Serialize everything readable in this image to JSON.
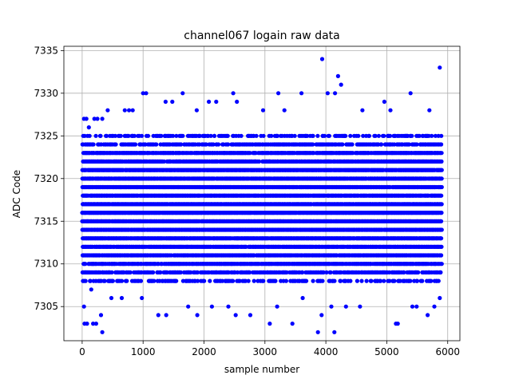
{
  "chart_data": {
    "type": "scatter",
    "title": "channel067 logain raw data",
    "xlabel": "sample number",
    "ylabel": "ADC Code",
    "xlim": [
      -300,
      6200
    ],
    "ylim": [
      7301,
      7335.5
    ],
    "xticks": [
      0,
      1000,
      2000,
      3000,
      4000,
      5000,
      6000
    ],
    "yticks": [
      7305,
      7310,
      7315,
      7320,
      7325,
      7330,
      7335
    ],
    "grid": true,
    "marker_color": "#0000ff",
    "n_samples": 5900,
    "typical_values": [
      7308,
      7309,
      7310,
      7311,
      7312,
      7313,
      7314,
      7315,
      7316,
      7317,
      7318,
      7319,
      7320,
      7321,
      7322,
      7323,
      7324,
      7325
    ],
    "sparse_points": [
      {
        "x": 30,
        "y": 7327
      },
      {
        "x": 70,
        "y": 7327
      },
      {
        "x": 110,
        "y": 7326
      },
      {
        "x": 200,
        "y": 7327
      },
      {
        "x": 250,
        "y": 7327
      },
      {
        "x": 330,
        "y": 7327
      },
      {
        "x": 420,
        "y": 7328
      },
      {
        "x": 700,
        "y": 7328
      },
      {
        "x": 770,
        "y": 7328
      },
      {
        "x": 830,
        "y": 7328
      },
      {
        "x": 1000,
        "y": 7330
      },
      {
        "x": 1050,
        "y": 7330
      },
      {
        "x": 1370,
        "y": 7329
      },
      {
        "x": 1480,
        "y": 7329
      },
      {
        "x": 1650,
        "y": 7330
      },
      {
        "x": 1880,
        "y": 7328
      },
      {
        "x": 2080,
        "y": 7329
      },
      {
        "x": 2200,
        "y": 7329
      },
      {
        "x": 2480,
        "y": 7330
      },
      {
        "x": 2540,
        "y": 7329
      },
      {
        "x": 2970,
        "y": 7328
      },
      {
        "x": 3220,
        "y": 7330
      },
      {
        "x": 3320,
        "y": 7328
      },
      {
        "x": 3600,
        "y": 7330
      },
      {
        "x": 3940,
        "y": 7334
      },
      {
        "x": 4030,
        "y": 7330
      },
      {
        "x": 4200,
        "y": 7332
      },
      {
        "x": 4250,
        "y": 7331
      },
      {
        "x": 4150,
        "y": 7330
      },
      {
        "x": 4600,
        "y": 7328
      },
      {
        "x": 4960,
        "y": 7329
      },
      {
        "x": 5060,
        "y": 7328
      },
      {
        "x": 5390,
        "y": 7330
      },
      {
        "x": 5870,
        "y": 7333
      },
      {
        "x": 5700,
        "y": 7328
      },
      {
        "x": 30,
        "y": 7305
      },
      {
        "x": 40,
        "y": 7303
      },
      {
        "x": 80,
        "y": 7303
      },
      {
        "x": 150,
        "y": 7307
      },
      {
        "x": 180,
        "y": 7303
      },
      {
        "x": 230,
        "y": 7303
      },
      {
        "x": 330,
        "y": 7302
      },
      {
        "x": 310,
        "y": 7304
      },
      {
        "x": 480,
        "y": 7306
      },
      {
        "x": 650,
        "y": 7306
      },
      {
        "x": 980,
        "y": 7306
      },
      {
        "x": 1250,
        "y": 7304
      },
      {
        "x": 1380,
        "y": 7304
      },
      {
        "x": 1740,
        "y": 7305
      },
      {
        "x": 1890,
        "y": 7304
      },
      {
        "x": 2130,
        "y": 7305
      },
      {
        "x": 2400,
        "y": 7305
      },
      {
        "x": 2520,
        "y": 7304
      },
      {
        "x": 2760,
        "y": 7304
      },
      {
        "x": 3080,
        "y": 7303
      },
      {
        "x": 3200,
        "y": 7305
      },
      {
        "x": 3450,
        "y": 7303
      },
      {
        "x": 3620,
        "y": 7306
      },
      {
        "x": 3870,
        "y": 7302
      },
      {
        "x": 3930,
        "y": 7304
      },
      {
        "x": 4090,
        "y": 7305
      },
      {
        "x": 4140,
        "y": 7302
      },
      {
        "x": 4330,
        "y": 7305
      },
      {
        "x": 4560,
        "y": 7305
      },
      {
        "x": 5150,
        "y": 7303
      },
      {
        "x": 5180,
        "y": 7303
      },
      {
        "x": 5420,
        "y": 7305
      },
      {
        "x": 5490,
        "y": 7305
      },
      {
        "x": 5670,
        "y": 7304
      },
      {
        "x": 5780,
        "y": 7305
      },
      {
        "x": 5870,
        "y": 7306
      }
    ]
  }
}
